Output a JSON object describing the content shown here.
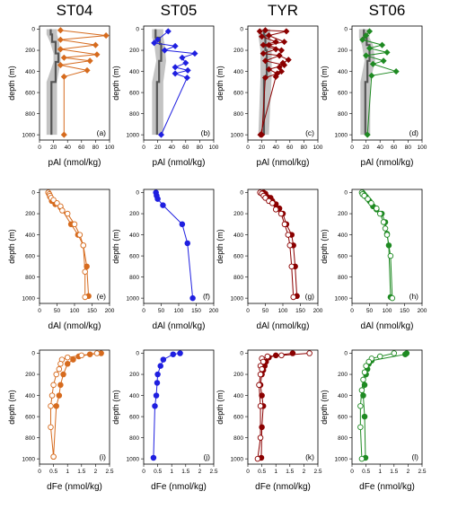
{
  "colors": {
    "ST04": "#d66b1e",
    "ST05": "#1f1fe0",
    "TYR": "#8b0000",
    "ST06": "#1e8a22",
    "band": "#bdbdbd",
    "median": "#555555"
  },
  "titles": [
    "ST04",
    "ST05",
    "TYR",
    "ST06"
  ],
  "ylabel": "depth (m)",
  "rows": [
    {
      "xlabel": "pAl (nmol/kg)",
      "xlim": [
        0,
        100
      ],
      "xticks": [
        0,
        20,
        40,
        60,
        80,
        100
      ]
    },
    {
      "xlabel": "dAl (nmol/kg)",
      "xlim": [
        0,
        200
      ],
      "xticks": [
        0,
        50,
        100,
        150,
        200
      ]
    },
    {
      "xlabel": "dFe (nmol/kg)",
      "xlim": [
        0,
        2.5
      ],
      "xticks": [
        0,
        0.5,
        1,
        1.5,
        2,
        2.5
      ]
    }
  ],
  "yticks": [
    0,
    200,
    400,
    600,
    800,
    1000
  ],
  "chart_data": [
    {
      "panel": "(a)",
      "type": "line",
      "station": "ST04",
      "xlabel": "pAl (nmol/kg)",
      "ylabel": "depth (m)",
      "xlim": [
        0,
        100
      ],
      "ylim": [
        1050,
        -30
      ],
      "marker": "diamond",
      "band": [
        [
          0,
          10,
          25
        ],
        [
          50,
          10,
          25
        ],
        [
          120,
          15,
          28
        ],
        [
          230,
          20,
          30
        ],
        [
          310,
          20,
          30
        ],
        [
          500,
          10,
          25
        ],
        [
          1000,
          10,
          25
        ]
      ],
      "median": [
        [
          0,
          16
        ],
        [
          50,
          16
        ],
        [
          50,
          18
        ],
        [
          120,
          18
        ],
        [
          120,
          23
        ],
        [
          230,
          23
        ],
        [
          230,
          27
        ],
        [
          310,
          27
        ],
        [
          310,
          23
        ],
        [
          500,
          23
        ],
        [
          500,
          17
        ],
        [
          1000,
          17
        ]
      ],
      "series": [
        {
          "x": [
            30,
            95,
            30,
            80,
            30,
            82,
            35,
            72,
            30,
            68,
            35,
            35
          ],
          "y": [
            10,
            60,
            100,
            150,
            190,
            240,
            270,
            300,
            340,
            390,
            450,
            1000
          ]
        }
      ]
    },
    {
      "panel": "(b)",
      "type": "line",
      "station": "ST05",
      "xlabel": "pAl (nmol/kg)",
      "ylabel": "depth (m)",
      "xlim": [
        0,
        100
      ],
      "ylim": [
        1050,
        -30
      ],
      "marker": "diamond",
      "band": [
        [
          0,
          12,
          28
        ],
        [
          80,
          12,
          28
        ],
        [
          140,
          15,
          30
        ],
        [
          300,
          18,
          32
        ],
        [
          500,
          12,
          28
        ],
        [
          1000,
          12,
          28
        ]
      ],
      "median": [
        [
          0,
          17
        ],
        [
          80,
          17
        ],
        [
          80,
          23
        ],
        [
          140,
          23
        ],
        [
          140,
          25
        ],
        [
          300,
          25
        ],
        [
          300,
          22
        ],
        [
          500,
          22
        ],
        [
          500,
          19
        ],
        [
          1000,
          19
        ]
      ],
      "series": [
        {
          "x": [
            35,
            20,
            15,
            45,
            30,
            73,
            55,
            60,
            45,
            63,
            45,
            62,
            25
          ],
          "y": [
            20,
            100,
            130,
            160,
            200,
            230,
            270,
            320,
            360,
            390,
            420,
            460,
            1000
          ]
        }
      ]
    },
    {
      "panel": "(c)",
      "type": "line",
      "station": "TYR",
      "xlabel": "pAl (nmol/kg)",
      "ylabel": "depth (m)",
      "xlim": [
        0,
        100
      ],
      "ylim": [
        1050,
        -30
      ],
      "marker": "diamond",
      "band": [
        [
          0,
          15,
          32
        ],
        [
          60,
          15,
          32
        ],
        [
          200,
          18,
          34
        ],
        [
          450,
          18,
          34
        ],
        [
          1000,
          15,
          30
        ]
      ],
      "median": [
        [
          0,
          23
        ],
        [
          60,
          23
        ],
        [
          60,
          25
        ],
        [
          200,
          25
        ],
        [
          200,
          27
        ],
        [
          450,
          27
        ],
        [
          450,
          23
        ],
        [
          1000,
          23
        ]
      ],
      "series": [
        {
          "x": [
            17,
            20,
            40,
            22,
            40,
            22,
            45,
            25,
            52,
            30,
            42,
            25,
            20
          ],
          "y": [
            20,
            70,
            120,
            150,
            190,
            230,
            250,
            300,
            340,
            380,
            420,
            460,
            1000
          ]
        },
        {
          "x": [
            25,
            55,
            30,
            52,
            30,
            48,
            45,
            58,
            50,
            45,
            48,
            40,
            18
          ],
          "y": [
            10,
            20,
            60,
            120,
            150,
            200,
            250,
            290,
            320,
            360,
            400,
            450,
            1000
          ]
        }
      ]
    },
    {
      "panel": "(d)",
      "type": "line",
      "station": "ST06",
      "xlabel": "pAl (nmol/kg)",
      "ylabel": "depth (m)",
      "xlim": [
        0,
        100
      ],
      "ylim": [
        1050,
        -30
      ],
      "marker": "diamond",
      "band": [
        [
          0,
          10,
          25
        ],
        [
          80,
          10,
          25
        ],
        [
          150,
          14,
          30
        ],
        [
          300,
          18,
          33
        ],
        [
          500,
          12,
          26
        ],
        [
          1000,
          12,
          26
        ]
      ],
      "median": [
        [
          0,
          17
        ],
        [
          80,
          17
        ],
        [
          80,
          21
        ],
        [
          150,
          21
        ],
        [
          150,
          25
        ],
        [
          300,
          25
        ],
        [
          300,
          22
        ],
        [
          500,
          22
        ],
        [
          500,
          19
        ],
        [
          1000,
          19
        ]
      ],
      "series": [
        {
          "x": [
            25,
            20,
            15,
            43,
            25,
            50,
            20,
            45,
            30,
            63,
            28,
            22
          ],
          "y": [
            20,
            60,
            100,
            150,
            180,
            220,
            250,
            300,
            330,
            400,
            440,
            1000
          ]
        }
      ]
    },
    {
      "panel": "(e)",
      "type": "line",
      "station": "ST04",
      "xlabel": "dAl (nmol/kg)",
      "ylabel": "depth (m)",
      "xlim": [
        0,
        200
      ],
      "ylim": [
        1050,
        -30
      ],
      "marker": "circle",
      "series": [
        {
          "fill": "filled",
          "x": [
            25,
            27,
            28,
            30,
            35,
            45,
            60,
            90,
            110,
            125,
            135,
            140
          ],
          "y": [
            0,
            10,
            20,
            40,
            80,
            110,
            140,
            300,
            400,
            500,
            700,
            980
          ]
        },
        {
          "fill": "open",
          "x": [
            25,
            28,
            30,
            33,
            40,
            50,
            60,
            65,
            80,
            100,
            115,
            125,
            130,
            130
          ],
          "y": [
            0,
            15,
            30,
            50,
            70,
            100,
            130,
            170,
            200,
            300,
            400,
            500,
            750,
            990
          ]
        }
      ]
    },
    {
      "panel": "(f)",
      "type": "line",
      "station": "ST05",
      "xlabel": "dAl (nmol/kg)",
      "ylabel": "depth (m)",
      "xlim": [
        0,
        200
      ],
      "ylim": [
        1050,
        -30
      ],
      "marker": "circle",
      "series": [
        {
          "fill": "filled",
          "x": [
            35,
            37,
            40,
            55,
            110,
            125,
            140
          ],
          "y": [
            0,
            30,
            60,
            120,
            300,
            480,
            1000
          ]
        }
      ]
    },
    {
      "panel": "(g)",
      "type": "line",
      "station": "TYR",
      "xlabel": "dAl (nmol/kg)",
      "ylabel": "depth (m)",
      "xlim": [
        0,
        200
      ],
      "ylim": [
        1050,
        -30
      ],
      "marker": "circle",
      "series": [
        {
          "fill": "filled",
          "x": [
            45,
            50,
            55,
            65,
            70,
            80,
            90,
            100,
            110,
            125,
            130,
            135,
            140
          ],
          "y": [
            0,
            10,
            40,
            50,
            80,
            110,
            150,
            200,
            300,
            400,
            500,
            700,
            980
          ]
        },
        {
          "fill": "open",
          "x": [
            35,
            40,
            45,
            50,
            60,
            70,
            80,
            95,
            105,
            115,
            120,
            125,
            130
          ],
          "y": [
            0,
            10,
            30,
            50,
            80,
            100,
            160,
            200,
            300,
            400,
            500,
            700,
            990
          ]
        }
      ]
    },
    {
      "panel": "(h)",
      "type": "line",
      "station": "ST06",
      "xlabel": "dAl (nmol/kg)",
      "ylabel": "depth (m)",
      "xlim": [
        0,
        200
      ],
      "ylim": [
        1050,
        -30
      ],
      "marker": "circle",
      "series": [
        {
          "fill": "filled",
          "x": [
            30,
            32,
            35,
            40,
            50,
            60,
            70,
            85,
            95,
            100,
            105,
            110
          ],
          "y": [
            0,
            10,
            20,
            40,
            80,
            130,
            160,
            200,
            280,
            390,
            500,
            990
          ]
        },
        {
          "fill": "open",
          "x": [
            28,
            30,
            35,
            45,
            55,
            70,
            80,
            90,
            95,
            100,
            110,
            115
          ],
          "y": [
            0,
            15,
            30,
            60,
            100,
            150,
            200,
            280,
            340,
            400,
            600,
            1000
          ]
        }
      ]
    },
    {
      "panel": "(i)",
      "type": "line",
      "station": "ST04",
      "xlabel": "dFe (nmol/kg)",
      "ylabel": "depth (m)",
      "xlim": [
        0,
        2.5
      ],
      "ylim": [
        1050,
        -30
      ],
      "marker": "circle",
      "series": [
        {
          "fill": "filled",
          "x": [
            2.2,
            1.8,
            1.4,
            1.2,
            1.0,
            0.85,
            0.75,
            0.7,
            0.6,
            0.5
          ],
          "y": [
            0,
            10,
            30,
            60,
            100,
            200,
            300,
            400,
            500,
            980
          ]
        },
        {
          "fill": "open",
          "x": [
            2.05,
            1.5,
            1.0,
            0.8,
            0.75,
            0.7,
            0.6,
            0.5,
            0.45,
            0.4,
            0.4,
            0.5
          ],
          "y": [
            0,
            20,
            40,
            60,
            100,
            150,
            200,
            300,
            400,
            500,
            700,
            980
          ]
        }
      ]
    },
    {
      "panel": "(j)",
      "type": "line",
      "station": "ST05",
      "xlabel": "dFe (nmol/kg)",
      "ylabel": "depth (m)",
      "xlim": [
        0,
        2.5
      ],
      "ylim": [
        1050,
        -30
      ],
      "marker": "circle",
      "series": [
        {
          "fill": "filled",
          "x": [
            1.3,
            1.05,
            0.7,
            0.6,
            0.5,
            0.48,
            0.45,
            0.4,
            0.35
          ],
          "y": [
            0,
            10,
            60,
            120,
            200,
            280,
            400,
            500,
            990
          ]
        }
      ]
    },
    {
      "panel": "(k)",
      "type": "line",
      "station": "TYR",
      "xlabel": "dFe (nmol/kg)",
      "ylabel": "depth (m)",
      "xlim": [
        0,
        2.5
      ],
      "ylim": [
        1050,
        -30
      ],
      "marker": "circle",
      "series": [
        {
          "fill": "filled",
          "x": [
            1.6,
            1.0,
            0.75,
            0.65,
            0.6,
            0.55,
            0.5,
            0.45,
            0.5,
            0.55,
            0.5,
            0.48
          ],
          "y": [
            0,
            20,
            40,
            80,
            120,
            160,
            200,
            300,
            400,
            500,
            700,
            990
          ]
        },
        {
          "fill": "open",
          "x": [
            2.2,
            1.2,
            0.7,
            0.5,
            0.55,
            0.45,
            0.5,
            0.45,
            0.4,
            0.45,
            0.45,
            0.35
          ],
          "y": [
            0,
            20,
            30,
            50,
            80,
            120,
            150,
            200,
            300,
            500,
            800,
            1000
          ]
        }
      ]
    },
    {
      "panel": "(l)",
      "type": "line",
      "station": "ST06",
      "xlabel": "dFe (nmol/kg)",
      "ylabel": "depth (m)",
      "xlim": [
        0,
        2.5
      ],
      "ylim": [
        1050,
        -30
      ],
      "marker": "circle",
      "series": [
        {
          "fill": "filled",
          "x": [
            1.95,
            1.9,
            0.7,
            0.6,
            0.55,
            0.5,
            0.45,
            0.4,
            0.45,
            0.48
          ],
          "y": [
            0,
            10,
            70,
            100,
            150,
            200,
            300,
            400,
            600,
            990
          ]
        },
        {
          "fill": "open",
          "x": [
            1.5,
            1.0,
            0.7,
            0.6,
            0.5,
            0.45,
            0.4,
            0.35,
            0.3,
            0.3,
            0.35
          ],
          "y": [
            0,
            30,
            50,
            80,
            120,
            180,
            250,
            350,
            500,
            700,
            1000
          ]
        }
      ]
    }
  ]
}
